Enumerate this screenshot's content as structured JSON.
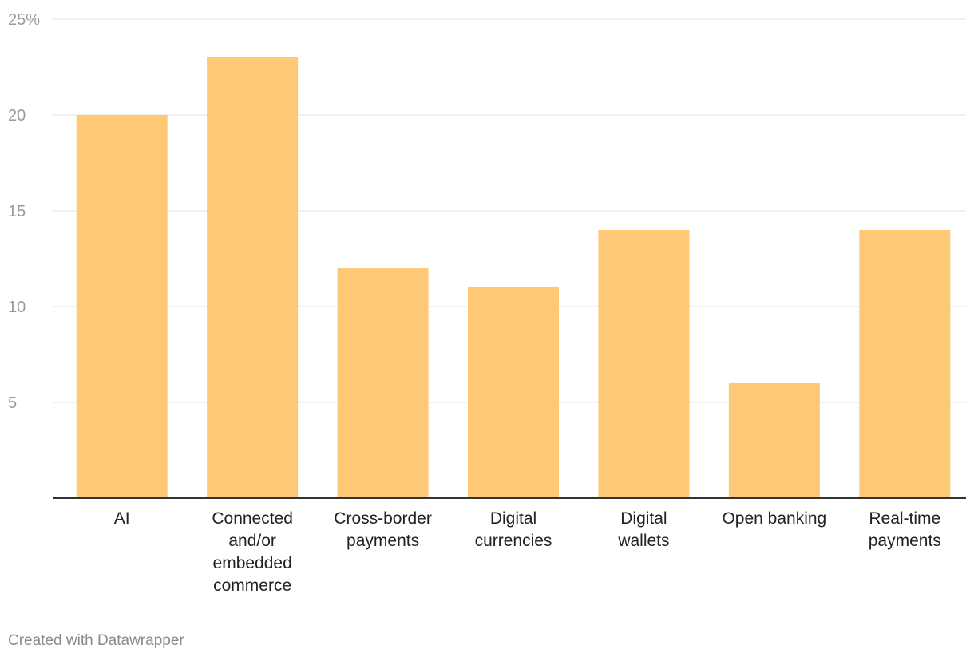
{
  "chart_data": {
    "type": "bar",
    "title": "",
    "xlabel": "",
    "ylabel": "",
    "ylim": [
      0,
      25
    ],
    "grid": true,
    "y_ticks": [
      5,
      10,
      15,
      20,
      25
    ],
    "y_tick_labels": [
      "5",
      "10",
      "15",
      "20",
      "25%"
    ],
    "categories": [
      [
        "AI"
      ],
      [
        "Connected",
        "and/or",
        "embedded",
        "commerce"
      ],
      [
        "Cross-border",
        "payments"
      ],
      [
        "Digital",
        "currencies"
      ],
      [
        "Digital",
        "wallets"
      ],
      [
        "Open banking"
      ],
      [
        "Real-time",
        "payments"
      ]
    ],
    "values": [
      20,
      23,
      12,
      11,
      14,
      6,
      14
    ],
    "bar_color": "#fdc977",
    "gridline_color": "#e2e2e2",
    "axis_color": "#333333"
  },
  "footer": {
    "credit": "Created with Datawrapper"
  }
}
